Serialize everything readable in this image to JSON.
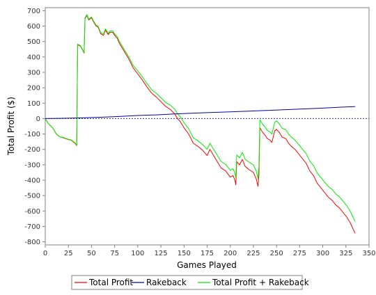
{
  "chart_data": {
    "type": "line",
    "title": "",
    "xlabel": "Games Played",
    "ylabel": "Total Profit ($)",
    "xlim": [
      0,
      350
    ],
    "ylim": [
      -820,
      720
    ],
    "x_ticks": [
      0,
      25,
      50,
      75,
      100,
      125,
      150,
      175,
      200,
      225,
      250,
      275,
      300,
      325,
      350
    ],
    "y_ticks": [
      700,
      600,
      500,
      400,
      300,
      200,
      100,
      0,
      -100,
      -200,
      -300,
      -400,
      -500,
      -600,
      -700,
      -800
    ],
    "grid": false,
    "zero_line": true,
    "legend_position": "bottom",
    "series": [
      {
        "name": "Total Profit",
        "color": "#ff0000",
        "points": [
          [
            0,
            0
          ],
          [
            3,
            -30
          ],
          [
            8,
            -60
          ],
          [
            12,
            -100
          ],
          [
            16,
            -120
          ],
          [
            20,
            -125
          ],
          [
            24,
            -135
          ],
          [
            28,
            -140
          ],
          [
            32,
            -160
          ],
          [
            34,
            -175
          ],
          [
            35,
            480
          ],
          [
            38,
            470
          ],
          [
            40,
            450
          ],
          [
            42,
            425
          ],
          [
            43,
            650
          ],
          [
            45,
            670
          ],
          [
            47,
            640
          ],
          [
            50,
            655
          ],
          [
            52,
            630
          ],
          [
            55,
            600
          ],
          [
            57,
            595
          ],
          [
            60,
            550
          ],
          [
            63,
            540
          ],
          [
            65,
            575
          ],
          [
            68,
            545
          ],
          [
            70,
            560
          ],
          [
            73,
            560
          ],
          [
            75,
            540
          ],
          [
            78,
            520
          ],
          [
            80,
            490
          ],
          [
            85,
            440
          ],
          [
            90,
            390
          ],
          [
            95,
            330
          ],
          [
            100,
            290
          ],
          [
            105,
            250
          ],
          [
            110,
            205
          ],
          [
            115,
            165
          ],
          [
            120,
            140
          ],
          [
            125,
            110
          ],
          [
            130,
            80
          ],
          [
            135,
            60
          ],
          [
            140,
            30
          ],
          [
            143,
            0
          ],
          [
            146,
            -20
          ],
          [
            150,
            -60
          ],
          [
            155,
            -100
          ],
          [
            160,
            -160
          ],
          [
            165,
            -180
          ],
          [
            170,
            -205
          ],
          [
            175,
            -240
          ],
          [
            178,
            -200
          ],
          [
            180,
            -220
          ],
          [
            185,
            -270
          ],
          [
            190,
            -320
          ],
          [
            195,
            -340
          ],
          [
            200,
            -380
          ],
          [
            203,
            -370
          ],
          [
            205,
            -400
          ],
          [
            206,
            -430
          ],
          [
            207,
            -280
          ],
          [
            210,
            -300
          ],
          [
            213,
            -265
          ],
          [
            216,
            -310
          ],
          [
            220,
            -330
          ],
          [
            225,
            -350
          ],
          [
            228,
            -390
          ],
          [
            230,
            -440
          ],
          [
            231,
            -360
          ],
          [
            232,
            -60
          ],
          [
            235,
            -90
          ],
          [
            238,
            -110
          ],
          [
            240,
            -130
          ],
          [
            243,
            -140
          ],
          [
            245,
            -155
          ],
          [
            248,
            -80
          ],
          [
            250,
            -70
          ],
          [
            253,
            -90
          ],
          [
            256,
            -120
          ],
          [
            260,
            -130
          ],
          [
            263,
            -160
          ],
          [
            266,
            -180
          ],
          [
            270,
            -200
          ],
          [
            274,
            -230
          ],
          [
            278,
            -260
          ],
          [
            282,
            -290
          ],
          [
            286,
            -340
          ],
          [
            290,
            -370
          ],
          [
            294,
            -420
          ],
          [
            298,
            -450
          ],
          [
            302,
            -480
          ],
          [
            306,
            -510
          ],
          [
            310,
            -530
          ],
          [
            314,
            -560
          ],
          [
            318,
            -580
          ],
          [
            322,
            -610
          ],
          [
            326,
            -640
          ],
          [
            330,
            -680
          ],
          [
            333,
            -720
          ],
          [
            335,
            -745
          ]
        ]
      },
      {
        "name": "Rakeback",
        "color": "#0000aa",
        "points": [
          [
            0,
            0
          ],
          [
            20,
            2
          ],
          [
            40,
            5
          ],
          [
            60,
            9
          ],
          [
            80,
            14
          ],
          [
            100,
            20
          ],
          [
            120,
            24
          ],
          [
            140,
            30
          ],
          [
            160,
            35
          ],
          [
            180,
            40
          ],
          [
            200,
            44
          ],
          [
            220,
            48
          ],
          [
            240,
            53
          ],
          [
            260,
            58
          ],
          [
            280,
            63
          ],
          [
            300,
            68
          ],
          [
            320,
            74
          ],
          [
            335,
            78
          ]
        ]
      },
      {
        "name": "Total Profit + Rakeback",
        "color": "#00ee00",
        "points": [
          [
            0,
            0
          ],
          [
            3,
            -30
          ],
          [
            8,
            -60
          ],
          [
            12,
            -100
          ],
          [
            16,
            -120
          ],
          [
            20,
            -123
          ],
          [
            24,
            -133
          ],
          [
            28,
            -138
          ],
          [
            32,
            -157
          ],
          [
            34,
            -172
          ],
          [
            35,
            483
          ],
          [
            38,
            473
          ],
          [
            40,
            453
          ],
          [
            42,
            429
          ],
          [
            43,
            655
          ],
          [
            45,
            675
          ],
          [
            47,
            645
          ],
          [
            50,
            660
          ],
          [
            52,
            636
          ],
          [
            55,
            606
          ],
          [
            57,
            601
          ],
          [
            60,
            557
          ],
          [
            63,
            547
          ],
          [
            65,
            583
          ],
          [
            68,
            553
          ],
          [
            70,
            569
          ],
          [
            73,
            569
          ],
          [
            75,
            550
          ],
          [
            78,
            530
          ],
          [
            80,
            502
          ],
          [
            85,
            452
          ],
          [
            90,
            403
          ],
          [
            95,
            345
          ],
          [
            100,
            310
          ],
          [
            105,
            270
          ],
          [
            110,
            227
          ],
          [
            115,
            187
          ],
          [
            120,
            164
          ],
          [
            125,
            135
          ],
          [
            130,
            106
          ],
          [
            135,
            88
          ],
          [
            140,
            60
          ],
          [
            143,
            31
          ],
          [
            146,
            12
          ],
          [
            150,
            -27
          ],
          [
            155,
            -66
          ],
          [
            160,
            -125
          ],
          [
            165,
            -144
          ],
          [
            170,
            -168
          ],
          [
            175,
            -200
          ],
          [
            178,
            -160
          ],
          [
            180,
            -180
          ],
          [
            185,
            -229
          ],
          [
            190,
            -278
          ],
          [
            195,
            -297
          ],
          [
            200,
            -336
          ],
          [
            203,
            -325
          ],
          [
            205,
            -356
          ],
          [
            206,
            -386
          ],
          [
            207,
            -236
          ],
          [
            210,
            -255
          ],
          [
            213,
            -219
          ],
          [
            216,
            -263
          ],
          [
            220,
            -282
          ],
          [
            225,
            -301
          ],
          [
            228,
            -339
          ],
          [
            230,
            -389
          ],
          [
            231,
            -308
          ],
          [
            232,
            -8
          ],
          [
            235,
            -37
          ],
          [
            238,
            -57
          ],
          [
            240,
            -77
          ],
          [
            243,
            -87
          ],
          [
            245,
            -101
          ],
          [
            248,
            -25
          ],
          [
            250,
            -15
          ],
          [
            253,
            -34
          ],
          [
            256,
            -63
          ],
          [
            260,
            -72
          ],
          [
            263,
            -101
          ],
          [
            266,
            -120
          ],
          [
            270,
            -140
          ],
          [
            274,
            -169
          ],
          [
            278,
            -198
          ],
          [
            282,
            -227
          ],
          [
            286,
            -276
          ],
          [
            290,
            -305
          ],
          [
            294,
            -354
          ],
          [
            298,
            -383
          ],
          [
            302,
            -412
          ],
          [
            306,
            -441
          ],
          [
            310,
            -460
          ],
          [
            314,
            -489
          ],
          [
            318,
            -508
          ],
          [
            322,
            -537
          ],
          [
            326,
            -566
          ],
          [
            330,
            -605
          ],
          [
            333,
            -644
          ],
          [
            335,
            -668
          ]
        ]
      }
    ]
  }
}
